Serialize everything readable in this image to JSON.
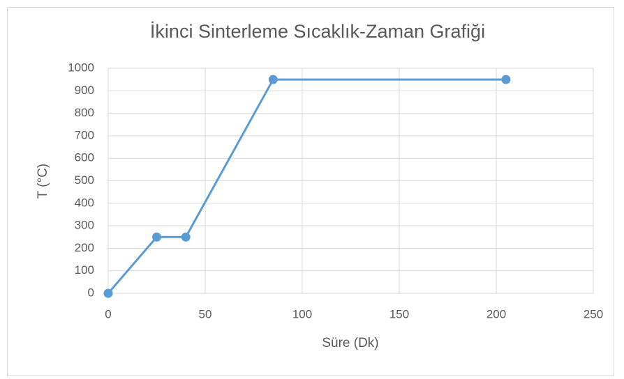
{
  "chart_data": {
    "type": "line",
    "title": "İkinci Sinterleme Sıcaklık-Zaman Grafiği",
    "x_label": "Süre (Dk)",
    "y_label": "T (°C)",
    "x": [
      0,
      25,
      40,
      85,
      205
    ],
    "series": [
      {
        "color": "#5b9bd5",
        "values": [
          0,
          250,
          250,
          950,
          950
        ]
      }
    ],
    "xlim": [
      0,
      250
    ],
    "xticks": [
      0,
      50,
      100,
      150,
      200,
      250
    ],
    "ylim": [
      0,
      1000
    ],
    "yticks": [
      0,
      100,
      200,
      300,
      400,
      500,
      600,
      700,
      800,
      900,
      1000
    ],
    "grid": true
  }
}
